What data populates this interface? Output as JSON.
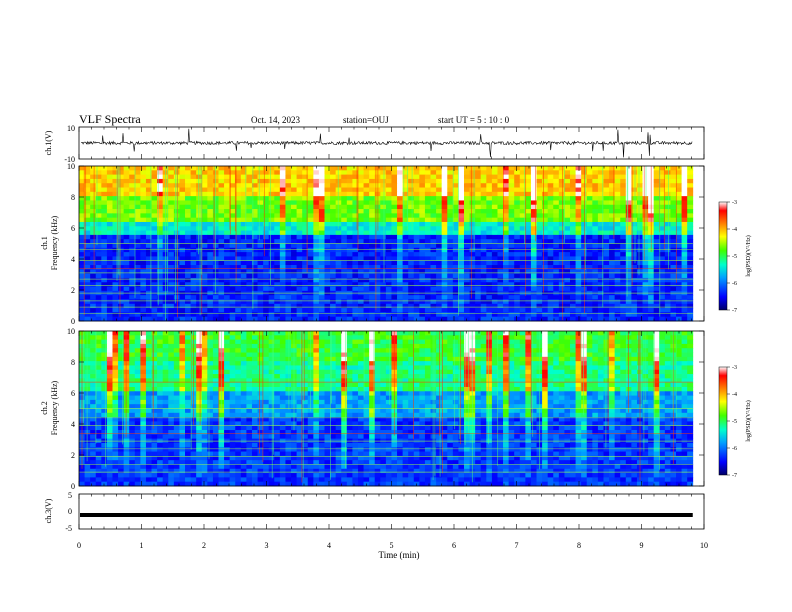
{
  "header": {
    "title": "VLF Spectra",
    "date": "Oct. 14, 2023",
    "station": "station=OUJ",
    "start_time": "start UT =  5 : 10 : 0"
  },
  "colorbar": {
    "label": "log(PSD)(V²/Hz)",
    "ticks": [
      "-3",
      "-4",
      "-5",
      "-6",
      "-7"
    ],
    "range": [
      -7,
      -3
    ],
    "colors": [
      "#000066",
      "#0000ff",
      "#00a0ff",
      "#00ffcc",
      "#40ff00",
      "#ffff00",
      "#ff8000",
      "#ff0000",
      "#ffffff"
    ]
  },
  "chart_data": [
    {
      "type": "line",
      "name": "ch1-waveform",
      "ylabel": "ch.1(V)",
      "ylim": [
        -10,
        10
      ],
      "yticks": [
        "10",
        "-10"
      ],
      "xlim": [
        0,
        10
      ],
      "baseline_v": 0,
      "typical_spread_v": [
        -1,
        1
      ]
    },
    {
      "type": "heatmap",
      "name": "ch1-spectrogram",
      "ylabel_line1": "ch.1",
      "ylabel_line2": "Frequency (kHz)",
      "ylim": [
        0,
        10
      ],
      "yticks": [
        "0",
        "2",
        "4",
        "6",
        "8",
        "10"
      ],
      "xlim": [
        0,
        10
      ],
      "data_end_min": 9.82
    },
    {
      "type": "heatmap",
      "name": "ch2-spectrogram",
      "ylabel_line1": "ch.2",
      "ylabel_line2": "Frequency (kHz)",
      "ylim": [
        0,
        10
      ],
      "yticks": [
        "0",
        "2",
        "4",
        "6",
        "8",
        "10"
      ],
      "xlim": [
        0,
        10
      ],
      "data_end_min": 9.82
    },
    {
      "type": "line",
      "name": "ch3-waveform",
      "ylabel": "ch.3(V)",
      "ylim": [
        -5,
        5
      ],
      "yticks": [
        "5",
        "0",
        "-5"
      ],
      "xlim": [
        0,
        10
      ],
      "level_v": -1,
      "data_end_min": 9.82
    }
  ],
  "xaxis": {
    "label": "Time (min)",
    "ticks": [
      "0",
      "1",
      "2",
      "3",
      "4",
      "5",
      "6",
      "7",
      "8",
      "9",
      "10"
    ]
  }
}
